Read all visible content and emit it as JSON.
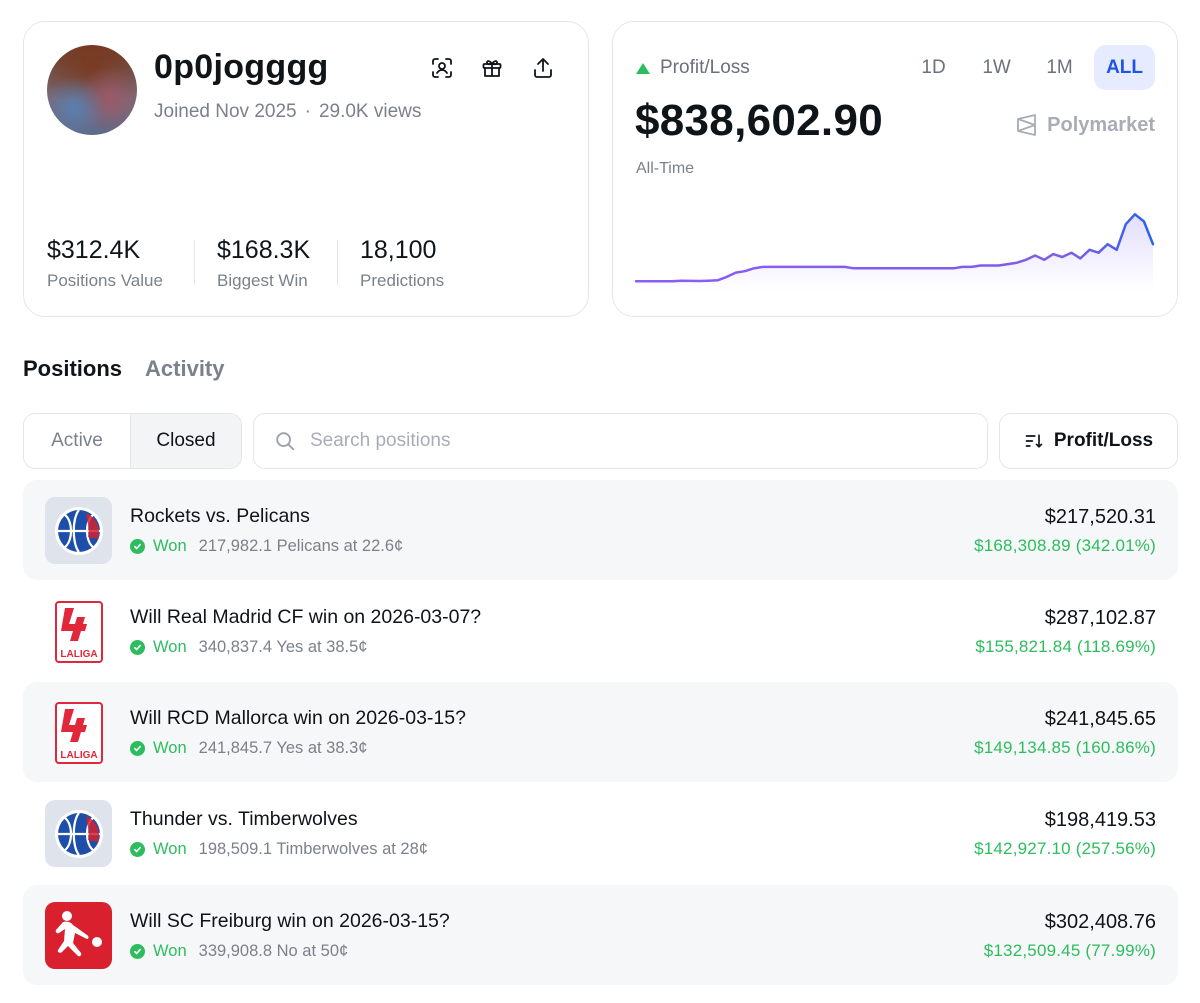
{
  "profile": {
    "username": "0p0jogggg",
    "joined": "Joined Nov 2025",
    "separator": "·",
    "views": "29.0K views",
    "stats": [
      {
        "value": "$312.4K",
        "label": "Positions Value"
      },
      {
        "value": "$168.3K",
        "label": "Biggest Win"
      },
      {
        "value": "18,100",
        "label": "Predictions"
      }
    ],
    "icons": [
      "face-scan-icon",
      "gift-icon",
      "share-icon"
    ]
  },
  "pnl": {
    "label": "Profit/Loss",
    "ranges": [
      "1D",
      "1W",
      "1M",
      "ALL"
    ],
    "active_range": "ALL",
    "value": "$838,602.90",
    "period": "All-Time",
    "brand": "Polymarket",
    "colors": {
      "line_start": "#8b5cf6",
      "line_end": "#2563eb",
      "up": "#2dbd5e"
    }
  },
  "chart_data": {
    "type": "line",
    "title": "",
    "xlabel": "",
    "ylabel": "",
    "y": [
      0,
      0,
      0,
      0,
      0,
      0.3,
      0.2,
      0.1,
      0.3,
      0.6,
      3,
      6,
      7,
      9,
      10,
      10,
      10,
      10,
      10,
      10,
      10,
      10,
      10,
      10,
      9,
      9,
      9,
      9,
      9,
      9,
      9,
      9,
      9,
      9,
      9,
      9,
      10,
      10,
      11,
      11,
      11,
      12,
      13,
      15,
      18,
      15,
      19,
      17,
      20,
      16,
      22,
      20,
      26,
      22,
      40,
      47,
      42,
      26
    ],
    "ylim": [
      -2,
      50
    ]
  },
  "tabs": [
    {
      "label": "Positions",
      "active": true
    },
    {
      "label": "Activity",
      "active": false
    }
  ],
  "filter": {
    "active_label": "Active",
    "closed_label": "Closed"
  },
  "search": {
    "placeholder": "Search positions"
  },
  "sort": {
    "label": "Profit/Loss"
  },
  "positions": [
    {
      "title": "Rockets vs. Pelicans",
      "status": "Won",
      "detail": "217,982.1 Pelicans at 22.6¢",
      "value": "$217,520.31",
      "profit": "$168,308.89 (342.01%)",
      "logo": "nba-basketball-icon"
    },
    {
      "title": "Will Real Madrid CF win on 2026-03-07?",
      "status": "Won",
      "detail": "340,837.4 Yes at 38.5¢",
      "value": "$287,102.87",
      "profit": "$155,821.84 (118.69%)",
      "logo": "laliga-logo",
      "logo_text": "LALIGA"
    },
    {
      "title": "Will RCD Mallorca win on 2026-03-15?",
      "status": "Won",
      "detail": "241,845.7 Yes at 38.3¢",
      "value": "$241,845.65",
      "profit": "$149,134.85 (160.86%)",
      "logo": "laliga-logo",
      "logo_text": "LALIGA"
    },
    {
      "title": "Thunder vs. Timberwolves",
      "status": "Won",
      "detail": "198,509.1 Timberwolves at 28¢",
      "value": "$198,419.53",
      "profit": "$142,927.10 (257.56%)",
      "logo": "nba-basketball-icon"
    },
    {
      "title": "Will SC Freiburg win on 2026-03-15?",
      "status": "Won",
      "detail": "339,908.8 No at 50¢",
      "value": "$302,408.76",
      "profit": "$132,509.45 (77.99%)",
      "logo": "bundesliga-logo"
    }
  ]
}
